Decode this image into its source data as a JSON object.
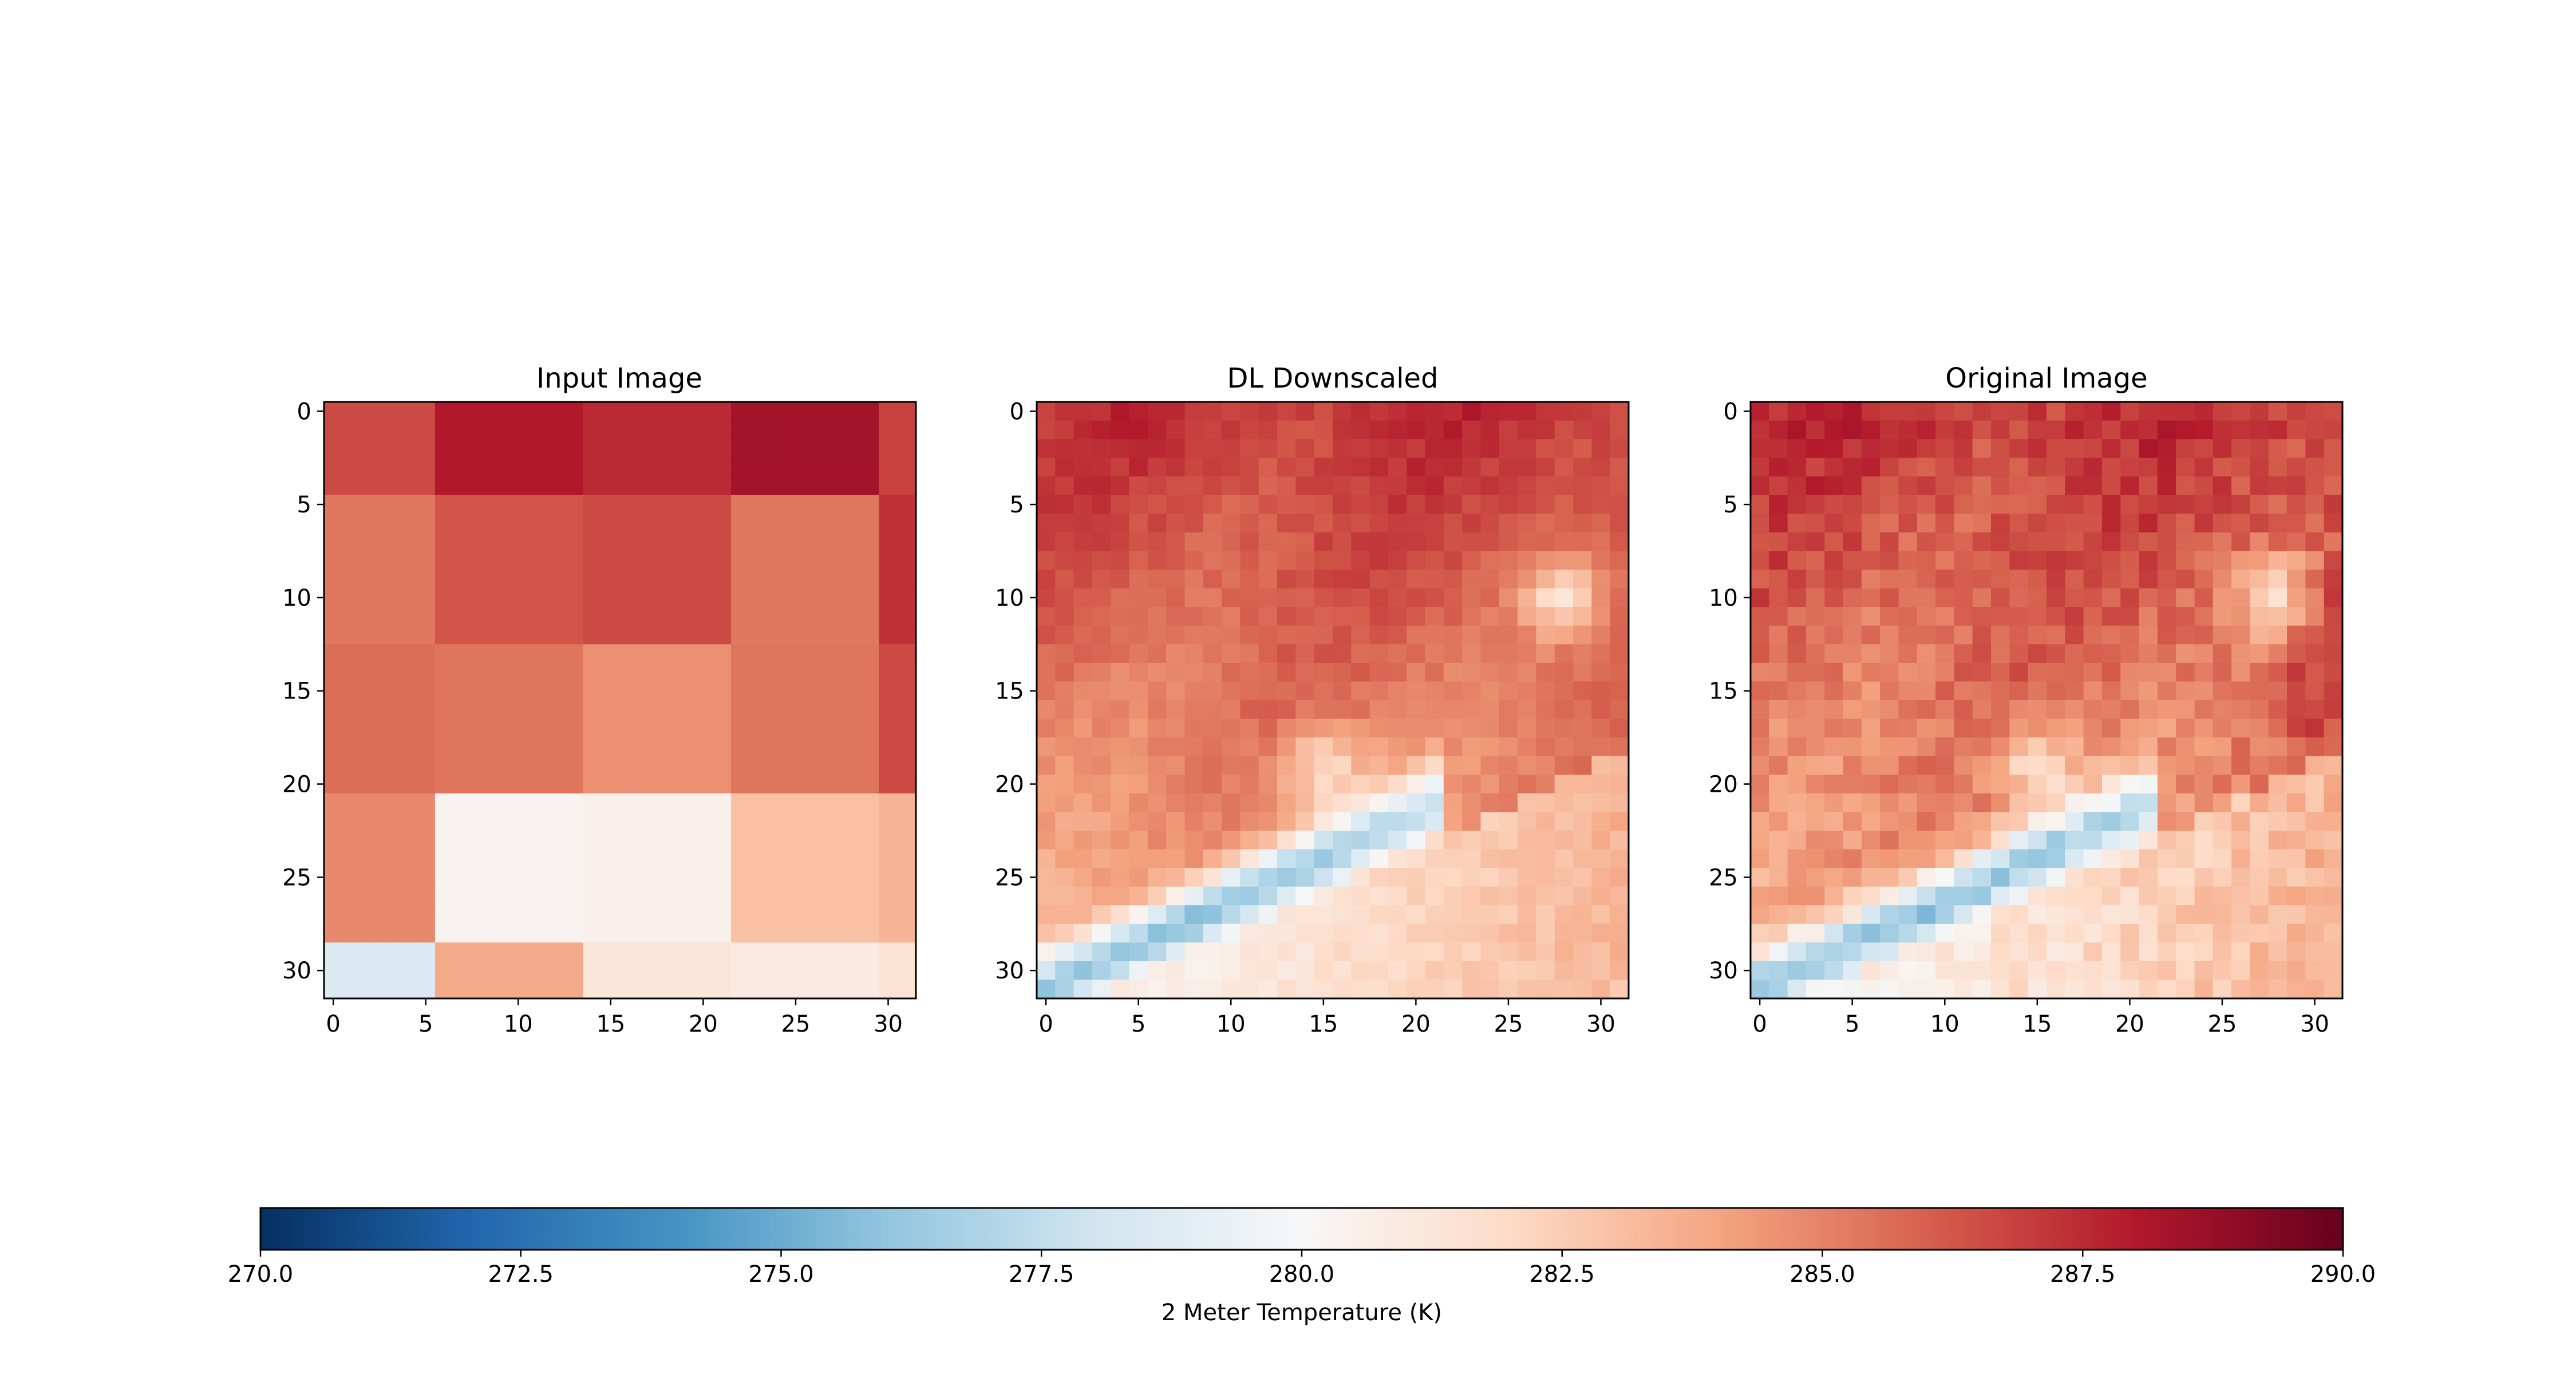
{
  "chart_data": {
    "type": "heatmap",
    "colormap": "RdBu_r",
    "value_range": [
      270.0,
      290.0
    ],
    "grid_size": [
      32,
      32
    ],
    "panels": [
      {
        "title": "Input Image",
        "xticks": [
          "0",
          "5",
          "10",
          "15",
          "20",
          "25",
          "30"
        ],
        "yticks": [
          "0",
          "5",
          "10",
          "15",
          "20",
          "25",
          "30"
        ],
        "block_columns": [
          0,
          6,
          14,
          22,
          30,
          32
        ],
        "block_rows": [
          0,
          5,
          13,
          21,
          29,
          32
        ],
        "block_values": [
          [
            286.6,
            288.0,
            287.5,
            288.4,
            286.8
          ],
          [
            285.3,
            286.3,
            286.6,
            285.3,
            287.3
          ],
          [
            285.6,
            285.4,
            284.6,
            285.4,
            286.6
          ],
          [
            284.8,
            280.3,
            280.5,
            283.0,
            283.4
          ],
          [
            278.5,
            283.8,
            281.2,
            280.9,
            281.4
          ]
        ]
      },
      {
        "title": "DL Downscaled",
        "xticks": [
          "0",
          "5",
          "10",
          "15",
          "20",
          "25",
          "30"
        ],
        "yticks": [
          "0",
          "5",
          "10",
          "15",
          "20",
          "25",
          "30"
        ],
        "field": "smooth"
      },
      {
        "title": "Original Image",
        "xticks": [
          "0",
          "5",
          "10",
          "15",
          "20",
          "25",
          "30"
        ],
        "yticks": [
          "0",
          "5",
          "10",
          "15",
          "20",
          "25",
          "30"
        ],
        "field": "detailed"
      }
    ],
    "colorbar": {
      "label": "2 Meter Temperature (K)",
      "ticks": [
        "270.0",
        "272.5",
        "275.0",
        "277.5",
        "280.0",
        "282.5",
        "285.0",
        "287.5",
        "290.0"
      ],
      "orientation": "horizontal"
    }
  }
}
